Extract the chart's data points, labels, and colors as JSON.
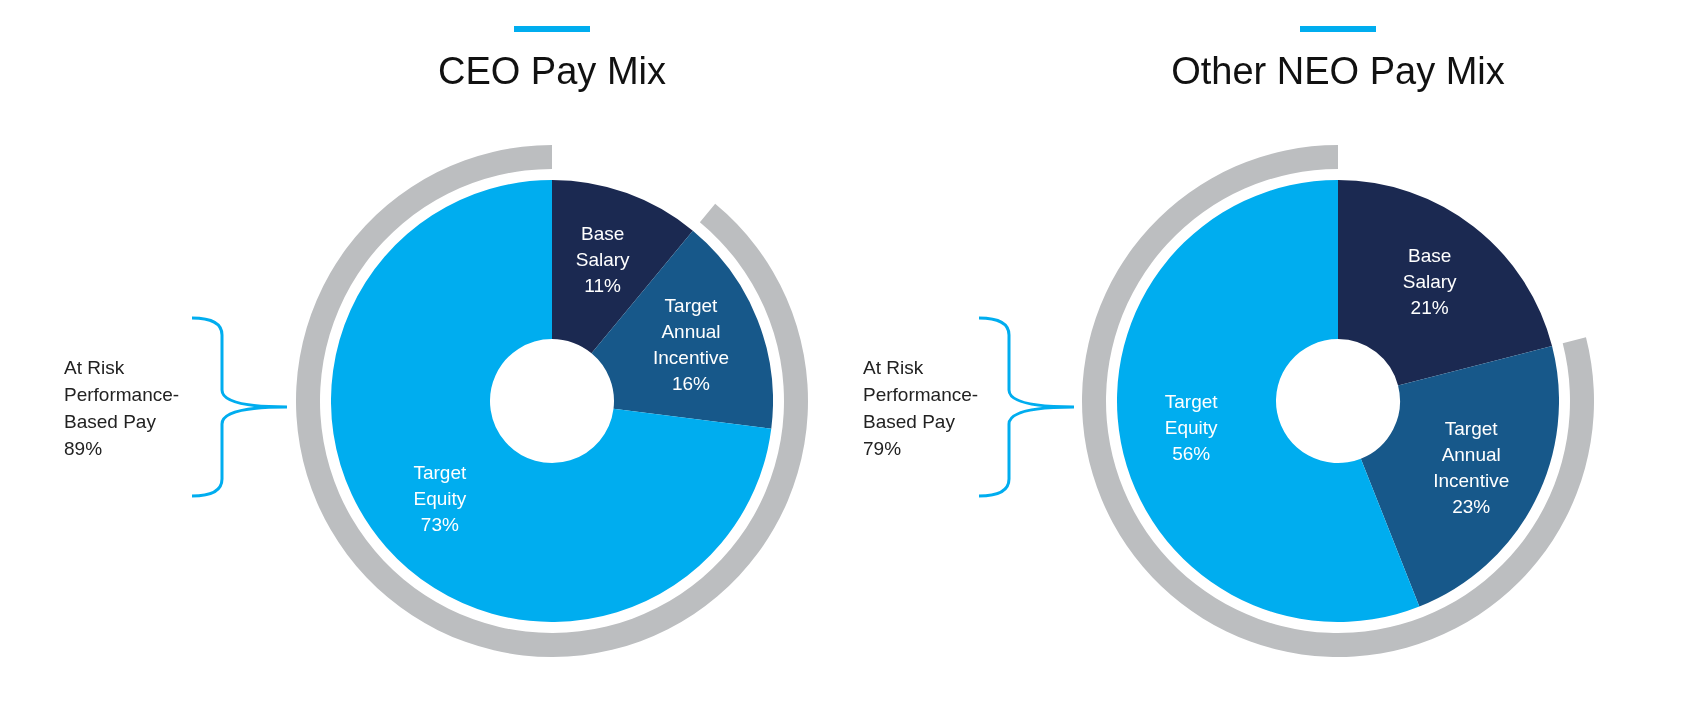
{
  "chart_data": [
    {
      "type": "donut",
      "title": "CEO Pay Mix",
      "categories": [
        "Base Salary",
        "Target Annual Incentive",
        "Target Equity"
      ],
      "series": [
        {
          "values": [
            11,
            16,
            73
          ],
          "colors": [
            "#1b2951",
            "#17588a",
            "#00adef"
          ],
          "value_labels": [
            "11%",
            "16%",
            "73%"
          ]
        }
      ],
      "annotations": [
        "At Risk Performance-Based Pay 89%"
      ]
    },
    {
      "type": "donut",
      "title": "Other NEO Pay Mix",
      "categories": [
        "Base Salary",
        "Target Annual Incentive",
        "Target Equity"
      ],
      "series": [
        {
          "values": [
            21,
            23,
            56
          ],
          "colors": [
            "#1b2951",
            "#17588a",
            "#00adef"
          ],
          "value_labels": [
            "21%",
            "23%",
            "56%"
          ]
        }
      ],
      "annotations": [
        "At Risk Performance-Based Pay 79%"
      ]
    }
  ]
}
